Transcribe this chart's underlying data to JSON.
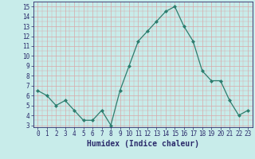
{
  "x": [
    0,
    1,
    2,
    3,
    4,
    5,
    6,
    7,
    8,
    9,
    10,
    11,
    12,
    13,
    14,
    15,
    16,
    17,
    18,
    19,
    20,
    21,
    22,
    23
  ],
  "y": [
    6.5,
    6.0,
    5.0,
    5.5,
    4.5,
    3.5,
    3.5,
    4.5,
    3.0,
    6.5,
    9.0,
    11.5,
    12.5,
    13.5,
    14.5,
    15.0,
    13.0,
    11.5,
    8.5,
    7.5,
    7.5,
    5.5,
    4.0,
    4.5
  ],
  "line_color": "#2d7d6e",
  "marker": "D",
  "marker_size": 2.0,
  "linewidth": 0.9,
  "xlabel": "Humidex (Indice chaleur)",
  "ylabel": "",
  "title": "",
  "xlim": [
    -0.5,
    23.5
  ],
  "ylim": [
    2.8,
    15.5
  ],
  "yticks": [
    3,
    4,
    5,
    6,
    7,
    8,
    9,
    10,
    11,
    12,
    13,
    14,
    15
  ],
  "xticks": [
    0,
    1,
    2,
    3,
    4,
    5,
    6,
    7,
    8,
    9,
    10,
    11,
    12,
    13,
    14,
    15,
    16,
    17,
    18,
    19,
    20,
    21,
    22,
    23
  ],
  "bg_color": "#c8ecea",
  "grid_color": "#d8a8a8",
  "font_color": "#2b2b6b",
  "tick_fontsize": 5.5,
  "label_fontsize": 7.0,
  "minor_grid_subdivisions": 2
}
